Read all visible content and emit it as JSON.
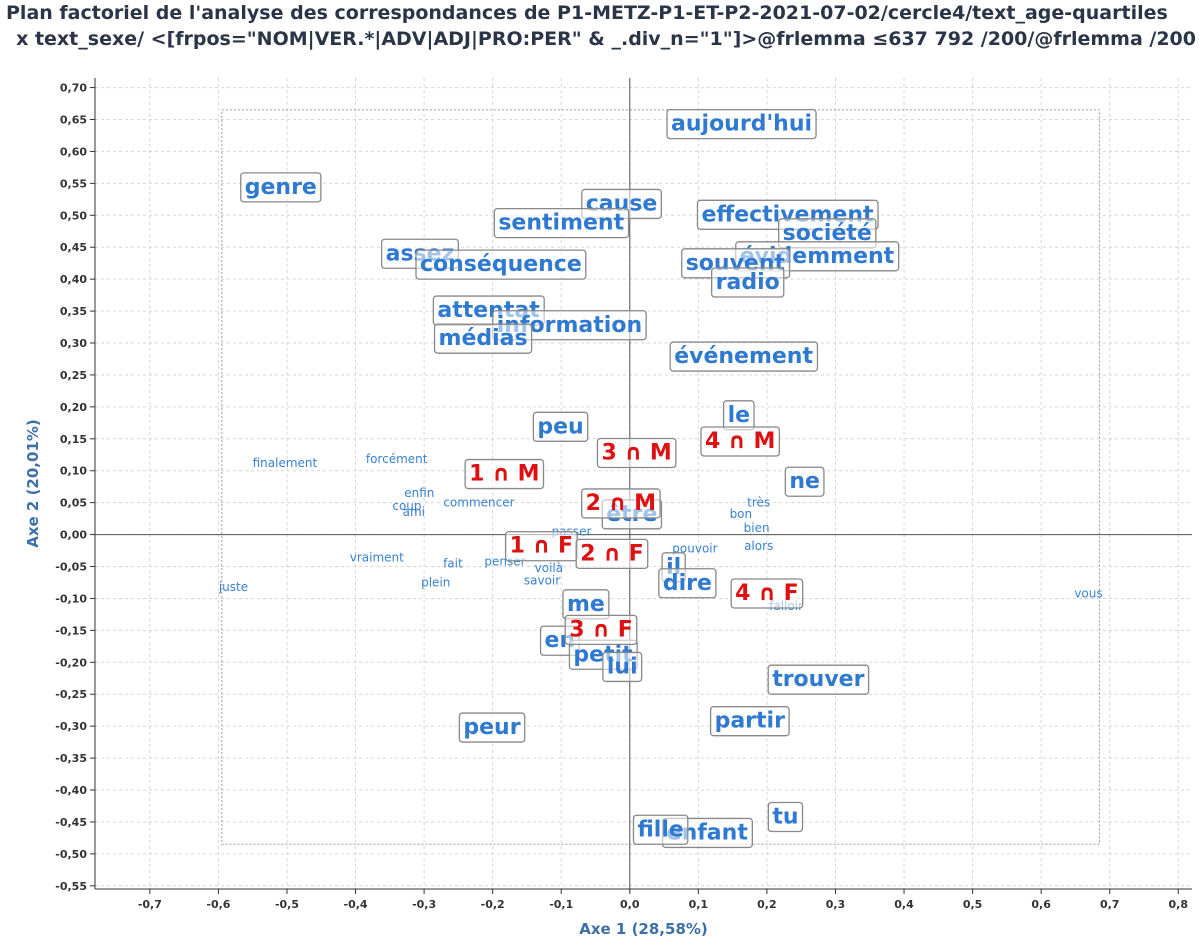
{
  "chart_data": {
    "type": "scatter",
    "title_line1": "Plan factoriel de l'analyse des correspondances de P1-METZ-P1-ET-P2-2021-07-02/cercle4/text_age-quartiles",
    "title_line2": "x text_sexe/ <[frpos=\"NOM|VER.*|ADV|ADJ|PRO:PER\" & _.div_n=\"1\"]>@frlemma ≤637 792 /200/@frlemma /200",
    "xlabel": "Axe 1 (28,58%)",
    "ylabel": "Axe 2 (20,01%)",
    "xlim": [
      -0.78,
      0.82
    ],
    "ylim": [
      -0.555,
      0.715
    ],
    "x_ticks": [
      -0.7,
      -0.6,
      -0.5,
      -0.4,
      -0.3,
      -0.2,
      -0.1,
      0.0,
      0.1,
      0.2,
      0.3,
      0.4,
      0.5,
      0.6,
      0.7,
      0.8
    ],
    "x_tick_labels": [
      "-0,7",
      "-0,6",
      "-0,5",
      "-0,4",
      "-0,3",
      "-0,2",
      "-0,1",
      "0,0",
      "0,1",
      "0,2",
      "0,3",
      "0,4",
      "0,5",
      "0,6",
      "0,7",
      "0,8"
    ],
    "y_ticks": [
      0.7,
      0.65,
      0.6,
      0.55,
      0.5,
      0.45,
      0.4,
      0.35,
      0.3,
      0.25,
      0.2,
      0.15,
      0.1,
      0.05,
      0.0,
      -0.05,
      -0.1,
      -0.15,
      -0.2,
      -0.25,
      -0.3,
      -0.35,
      -0.4,
      -0.45,
      -0.5,
      -0.55
    ],
    "y_tick_labels": [
      "0,70",
      "0,65",
      "0,60",
      "0,55",
      "0,50",
      "0,45",
      "0,40",
      "0,35",
      "0,30",
      "0,25",
      "0,20",
      "0,15",
      "0,10",
      "0,05",
      "0,00",
      "-0,05",
      "-0,10",
      "-0,15",
      "-0,20",
      "-0,25",
      "-0,30",
      "-0,35",
      "-0,40",
      "-0,45",
      "-0,50",
      "-0,55"
    ],
    "frame": {
      "x0": -0.595,
      "x1": 0.685,
      "y0": -0.485,
      "y1": 0.665
    },
    "colors": {
      "col": "#dd1111",
      "row_main": "#2f7ad0",
      "row_small": "#3a82d0",
      "box_border": "#888888"
    },
    "rows_main": [
      {
        "label": "aujourd'hui",
        "x": 0.163,
        "y": 0.645
      },
      {
        "label": "genre",
        "x": -0.509,
        "y": 0.546
      },
      {
        "label": "cause",
        "x": -0.012,
        "y": 0.52
      },
      {
        "label": "sentiment",
        "x": -0.1,
        "y": 0.49
      },
      {
        "label": "effectivement",
        "x": 0.23,
        "y": 0.503
      },
      {
        "label": "société",
        "x": 0.288,
        "y": 0.474
      },
      {
        "label": "assez",
        "x": -0.306,
        "y": 0.442
      },
      {
        "label": "évidemment",
        "x": 0.273,
        "y": 0.438
      },
      {
        "label": "conséquence",
        "x": -0.188,
        "y": 0.425
      },
      {
        "label": "souvent",
        "x": 0.154,
        "y": 0.427
      },
      {
        "label": "radio",
        "x": 0.172,
        "y": 0.397
      },
      {
        "label": "attentat",
        "x": -0.206,
        "y": 0.353
      },
      {
        "label": "information",
        "x": -0.088,
        "y": 0.33
      },
      {
        "label": "médias",
        "x": -0.214,
        "y": 0.309
      },
      {
        "label": "événement",
        "x": 0.166,
        "y": 0.281
      },
      {
        "label": "le",
        "x": 0.159,
        "y": 0.189
      },
      {
        "label": "peu",
        "x": -0.101,
        "y": 0.171
      },
      {
        "label": "ne",
        "x": 0.255,
        "y": 0.085
      },
      {
        "label": "être",
        "x": 0.003,
        "y": 0.034
      },
      {
        "label": "il",
        "x": 0.064,
        "y": -0.049
      },
      {
        "label": "dire",
        "x": 0.084,
        "y": -0.074
      },
      {
        "label": "me",
        "x": -0.064,
        "y": -0.107
      },
      {
        "label": "en",
        "x": -0.102,
        "y": -0.164
      },
      {
        "label": "petit",
        "x": -0.039,
        "y": -0.186
      },
      {
        "label": "lui",
        "x": -0.011,
        "y": -0.205
      },
      {
        "label": "trouver",
        "x": 0.275,
        "y": -0.225
      },
      {
        "label": "peur",
        "x": -0.201,
        "y": -0.3
      },
      {
        "label": "partir",
        "x": 0.175,
        "y": -0.29
      },
      {
        "label": "tu",
        "x": 0.227,
        "y": -0.44
      },
      {
        "label": "enfant",
        "x": 0.113,
        "y": -0.465
      },
      {
        "label": "fille",
        "x": 0.045,
        "y": -0.46
      }
    ],
    "rows_small": [
      {
        "label": "finalement",
        "x": -0.503,
        "y": 0.112
      },
      {
        "label": "forcément",
        "x": -0.34,
        "y": 0.118
      },
      {
        "label": "enfin",
        "x": -0.307,
        "y": 0.065
      },
      {
        "label": "commencer",
        "x": -0.22,
        "y": 0.05
      },
      {
        "label": "coup",
        "x": -0.325,
        "y": 0.045
      },
      {
        "label": "ami",
        "x": -0.315,
        "y": 0.035
      },
      {
        "label": "passer",
        "x": -0.085,
        "y": 0.005
      },
      {
        "label": "très",
        "x": 0.188,
        "y": 0.05
      },
      {
        "label": "bon",
        "x": 0.162,
        "y": 0.032
      },
      {
        "label": "bien",
        "x": 0.185,
        "y": 0.01
      },
      {
        "label": "alors",
        "x": 0.188,
        "y": -0.018
      },
      {
        "label": "pouvoir",
        "x": 0.095,
        "y": -0.022
      },
      {
        "label": "vraiment",
        "x": -0.369,
        "y": -0.036
      },
      {
        "label": "penser",
        "x": -0.182,
        "y": -0.042
      },
      {
        "label": "voilà",
        "x": -0.118,
        "y": -0.052
      },
      {
        "label": "fait",
        "x": -0.258,
        "y": -0.045
      },
      {
        "label": "savoir",
        "x": -0.128,
        "y": -0.072
      },
      {
        "label": "plein",
        "x": -0.283,
        "y": -0.075
      },
      {
        "label": "juste",
        "x": -0.578,
        "y": -0.082
      },
      {
        "label": "vous",
        "x": 0.669,
        "y": -0.092
      },
      {
        "label": "falloir",
        "x": 0.228,
        "y": -0.112
      }
    ],
    "cols": [
      {
        "label": "3 ∩ M",
        "x": 0.01,
        "y": 0.13
      },
      {
        "label": "4 ∩ M",
        "x": 0.161,
        "y": 0.148
      },
      {
        "label": "1 ∩ M",
        "x": -0.183,
        "y": 0.097
      },
      {
        "label": "2 ∩ M",
        "x": -0.013,
        "y": 0.051
      },
      {
        "label": "1 ∩ F",
        "x": -0.129,
        "y": -0.016
      },
      {
        "label": "2 ∩ F",
        "x": -0.026,
        "y": -0.028
      },
      {
        "label": "4 ∩ F",
        "x": 0.2,
        "y": -0.09
      },
      {
        "label": "3 ∩ F",
        "x": -0.042,
        "y": -0.147
      }
    ]
  }
}
